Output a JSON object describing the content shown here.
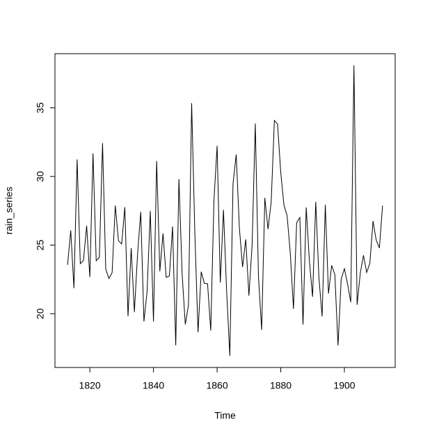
{
  "chart_data": {
    "type": "line",
    "x_label": "Time",
    "y_label": "rain_series",
    "x": [
      1813,
      1814,
      1815,
      1816,
      1817,
      1818,
      1819,
      1820,
      1821,
      1822,
      1823,
      1824,
      1825,
      1826,
      1827,
      1828,
      1829,
      1830,
      1831,
      1832,
      1833,
      1834,
      1835,
      1836,
      1837,
      1838,
      1839,
      1840,
      1841,
      1842,
      1843,
      1844,
      1845,
      1846,
      1847,
      1848,
      1849,
      1850,
      1851,
      1852,
      1853,
      1854,
      1855,
      1856,
      1857,
      1858,
      1859,
      1860,
      1861,
      1862,
      1863,
      1864,
      1865,
      1866,
      1867,
      1868,
      1869,
      1870,
      1871,
      1872,
      1873,
      1874,
      1875,
      1876,
      1877,
      1878,
      1879,
      1880,
      1881,
      1882,
      1883,
      1884,
      1885,
      1886,
      1887,
      1888,
      1889,
      1890,
      1891,
      1892,
      1893,
      1894,
      1895,
      1896,
      1897,
      1898,
      1899,
      1900,
      1901,
      1902,
      1903,
      1904,
      1905,
      1906,
      1907,
      1908,
      1909,
      1910,
      1911,
      1912
    ],
    "series": [
      {
        "name": "rain_series",
        "color": "#000000",
        "values": [
          23.56,
          26.07,
          21.86,
          31.24,
          23.65,
          23.88,
          26.41,
          22.67,
          31.69,
          23.86,
          24.11,
          32.43,
          23.26,
          22.57,
          23.0,
          27.88,
          25.32,
          25.08,
          27.76,
          19.82,
          24.78,
          20.12,
          24.34,
          27.42,
          19.44,
          21.63,
          27.49,
          19.43,
          31.13,
          23.09,
          25.85,
          22.65,
          22.75,
          26.36,
          17.7,
          29.81,
          22.93,
          19.22,
          20.63,
          35.34,
          25.89,
          18.65,
          23.06,
          22.21,
          22.18,
          18.77,
          28.21,
          32.24,
          22.27,
          27.57,
          21.59,
          16.93,
          29.48,
          31.6,
          26.25,
          23.4,
          25.42,
          21.32,
          25.02,
          33.86,
          22.67,
          18.82,
          28.44,
          26.16,
          28.17,
          34.08,
          33.82,
          30.28,
          27.92,
          27.14,
          24.4,
          20.35,
          26.64,
          27.01,
          19.21,
          27.74,
          23.85,
          21.23,
          28.15,
          22.61,
          19.8,
          27.94,
          21.47,
          23.52,
          22.86,
          17.69,
          22.54,
          23.28,
          22.17,
          20.84,
          38.1,
          20.65,
          22.97,
          24.26,
          23.01,
          23.67,
          26.75,
          25.36,
          24.79,
          27.88
        ]
      }
    ],
    "xlim": [
      1809.04,
      1915.96
    ],
    "xticks": [
      1820,
      1840,
      1860,
      1880,
      1900
    ],
    "ylim": [
      16.0832,
      38.9468
    ],
    "yticks": [
      20,
      25,
      30,
      35
    ]
  }
}
